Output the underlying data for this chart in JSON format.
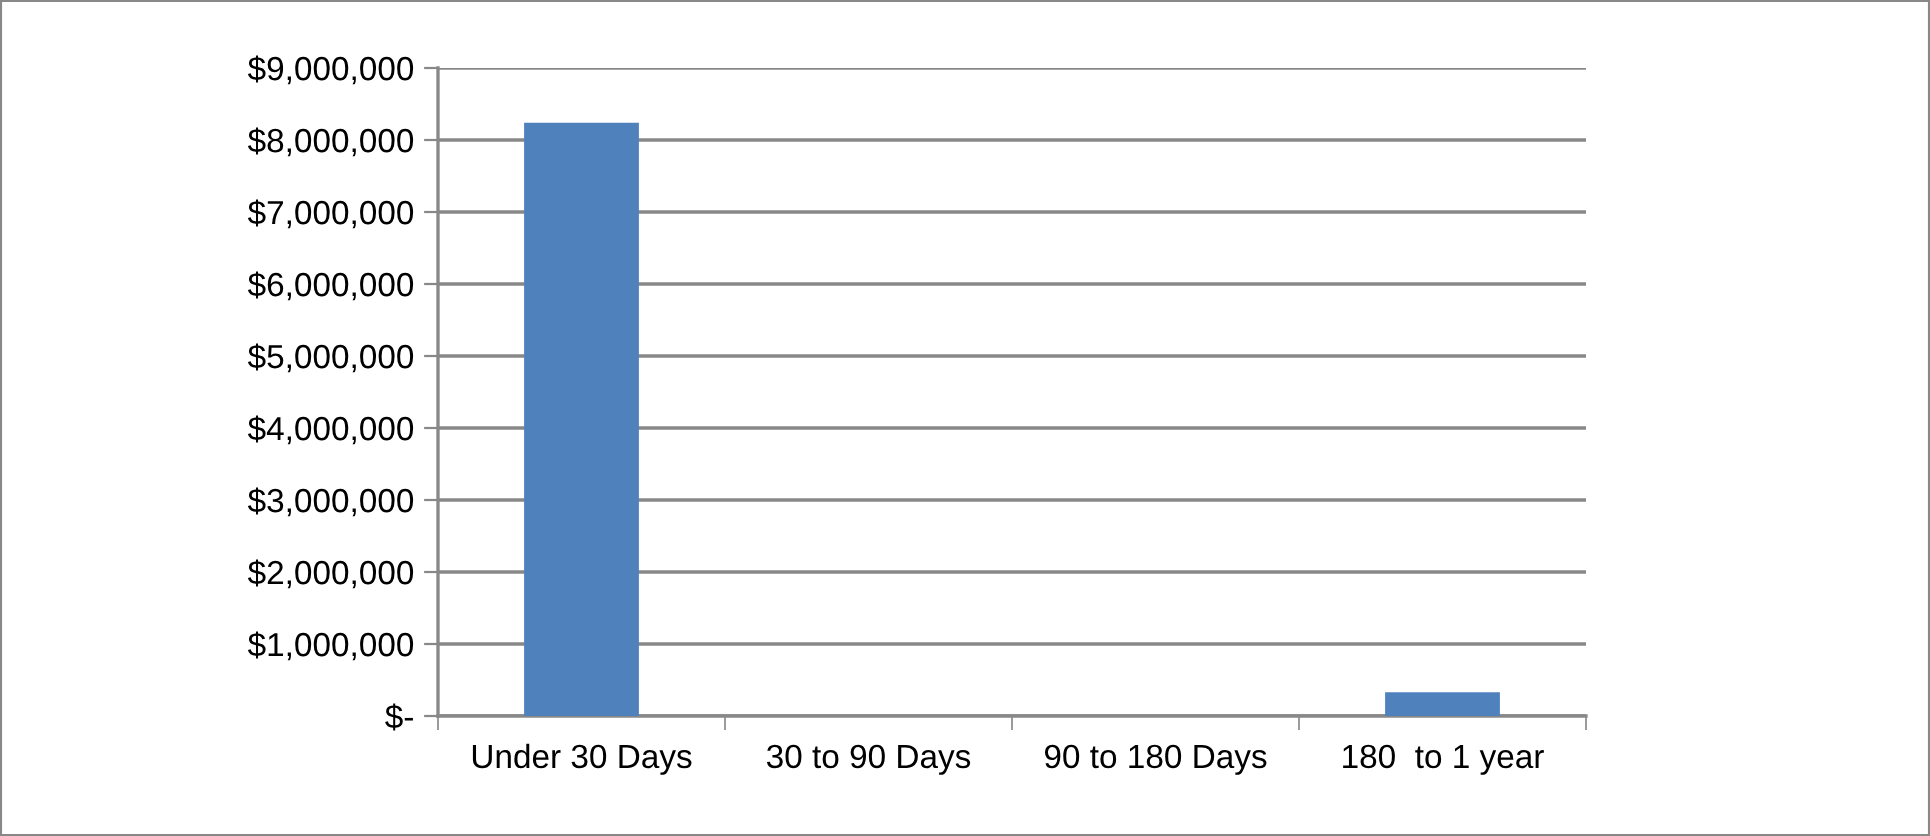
{
  "chart_data": {
    "type": "bar",
    "categories": [
      "Under 30 Days",
      "30 to 90 Days",
      "90 to 180 Days",
      "180  to 1 year"
    ],
    "values": [
      8240000,
      0,
      0,
      330000
    ],
    "color": "#4f81bd",
    "ylim": [
      0,
      9000000
    ],
    "yticks": [
      {
        "value": 0,
        "label": "$-"
      },
      {
        "value": 1000000,
        "label": "$1,000,000"
      },
      {
        "value": 2000000,
        "label": "$2,000,000"
      },
      {
        "value": 3000000,
        "label": "$3,000,000"
      },
      {
        "value": 4000000,
        "label": "$4,000,000"
      },
      {
        "value": 5000000,
        "label": "$5,000,000"
      },
      {
        "value": 6000000,
        "label": "$6,000,000"
      },
      {
        "value": 7000000,
        "label": "$7,000,000"
      },
      {
        "value": 8000000,
        "label": "$8,000,000"
      },
      {
        "value": 9000000,
        "label": "$9,000,000"
      }
    ],
    "grid": "y"
  }
}
